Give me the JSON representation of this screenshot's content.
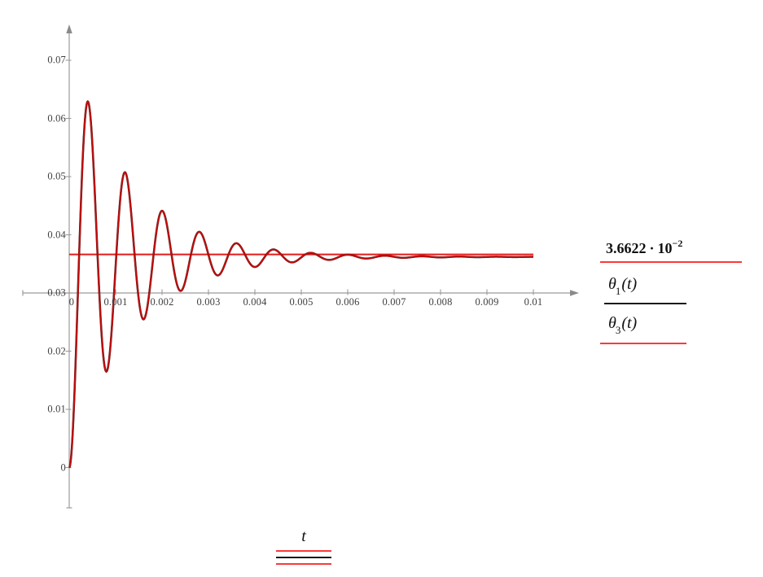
{
  "figure": {
    "background": "#ffffff",
    "axis_color": "#9b9b9b",
    "arrow_color": "#8a8a8a",
    "tick_label_color": "#3f3f3f"
  },
  "chart_data": {
    "type": "line",
    "title": "",
    "xlabel": "t",
    "ylabel": "",
    "xlim": [
      0,
      0.01
    ],
    "ylim": [
      0,
      0.07
    ],
    "axes_origin": [
      0,
      0.03
    ],
    "grid": false,
    "legend_position": "right-outside",
    "x_ticks": [
      {
        "v": 0,
        "label": "0"
      },
      {
        "v": 0.001,
        "label": "0.001"
      },
      {
        "v": 0.002,
        "label": "0.002"
      },
      {
        "v": 0.003,
        "label": "0.003"
      },
      {
        "v": 0.004,
        "label": "0.004"
      },
      {
        "v": 0.005,
        "label": "0.005"
      },
      {
        "v": 0.006,
        "label": "0.006"
      },
      {
        "v": 0.007,
        "label": "0.007"
      },
      {
        "v": 0.008,
        "label": "0.008"
      },
      {
        "v": 0.009,
        "label": "0.009"
      },
      {
        "v": 0.01,
        "label": "0.01"
      }
    ],
    "y_ticks": [
      {
        "v": 0,
        "label": "0"
      },
      {
        "v": 0.01,
        "label": "0.01"
      },
      {
        "v": 0.02,
        "label": "0.02"
      },
      {
        "v": 0.03,
        "label": "0.03"
      },
      {
        "v": 0.04,
        "label": "0.04"
      },
      {
        "v": 0.05,
        "label": "0.05"
      },
      {
        "v": 0.06,
        "label": "0.06"
      },
      {
        "v": 0.07,
        "label": "0.07"
      }
    ],
    "series": [
      {
        "name": "3.6622·10⁻²",
        "type": "hline",
        "value": 0.036622,
        "x_from": 0,
        "x_to": 0.01,
        "color": "#e41b1b"
      },
      {
        "name": "θ₁(t)",
        "type": "curve",
        "color": "#1a1a1a",
        "note": "overlapped by θ₃(t)"
      },
      {
        "name": "θ₃(t)",
        "type": "curve",
        "color": "#c00d0d"
      }
    ],
    "curve_model": {
      "description": "damped oscillation step response y(t)=yf*(1-exp(-sigma*t)*(cos(omega*t)+(sigma/omega)*sin(omega*t)))",
      "y_final": 0.0362,
      "sigma": 760,
      "omega": 7854,
      "t_start": 0,
      "t_end": 0.01,
      "period": 0.0008
    },
    "key_points": {
      "start": [
        0,
        0
      ],
      "peaks": [
        [
          0.0004,
          0.0632
        ],
        [
          0.0012,
          0.051
        ],
        [
          0.002,
          0.0443
        ],
        [
          0.0028,
          0.0402
        ],
        [
          0.0036,
          0.0383
        ],
        [
          0.0044,
          0.0371
        ],
        [
          0.0052,
          0.0368
        ]
      ],
      "troughs": [
        [
          0.0008,
          0.0157
        ],
        [
          0.0016,
          0.0251
        ],
        [
          0.0024,
          0.03
        ],
        [
          0.0032,
          0.0328
        ],
        [
          0.004,
          0.0341
        ],
        [
          0.0048,
          0.0349
        ],
        [
          0.0056,
          0.0357
        ]
      ],
      "steady_state_line": 0.036622
    }
  },
  "legend": {
    "steady_value": {
      "mantissa": "3.6622",
      "times": "·",
      "base": "10",
      "exponent": "−2",
      "rule_color": "#f93a3a"
    },
    "theta1": {
      "symbol": "θ",
      "sub": "1",
      "args": "(t)",
      "rule_color": "#1a1a1a"
    },
    "theta3": {
      "symbol": "θ",
      "sub": "3",
      "args": "(t)",
      "rule_color": "#f93a3a"
    }
  },
  "xaxis_label": {
    "text": "t",
    "rule_colors": [
      "#f93a3a",
      "#1a1a1a",
      "#f93a3a"
    ]
  }
}
